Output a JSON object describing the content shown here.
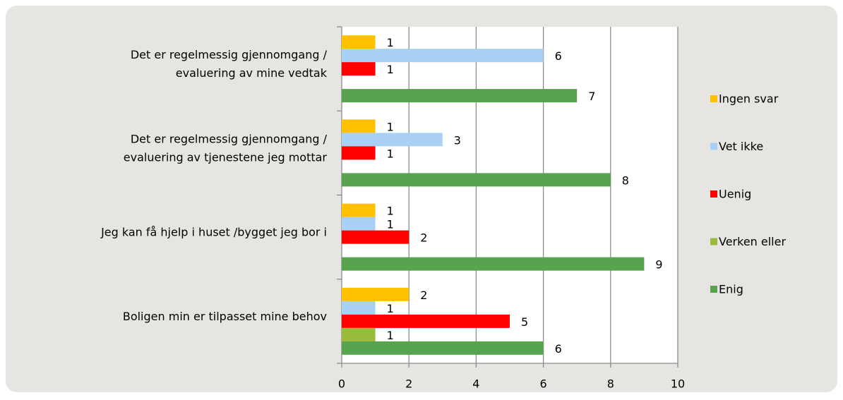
{
  "chart_data": {
    "type": "hbar",
    "categories": [
      [
        "Det er regelmessig gjennomgang /",
        "evaluering av mine vedtak"
      ],
      [
        "Det er regelmessig gjennomgang /",
        "evaluering av tjenestene jeg mottar"
      ],
      [
        "Jeg kan få hjelp i huset /bygget jeg bor i"
      ],
      [
        "Boligen min er tilpasset mine behov"
      ]
    ],
    "series": [
      {
        "name": "Ingen svar",
        "color": "#ffc000",
        "values": [
          1,
          1,
          1,
          2
        ]
      },
      {
        "name": "Vet ikke",
        "color": "#a9d0f5",
        "values": [
          6,
          3,
          1,
          1
        ]
      },
      {
        "name": "Uenig",
        "color": "#ff0000",
        "values": [
          1,
          1,
          2,
          5
        ]
      },
      {
        "name": "Verken eller",
        "color": "#9bbb3a",
        "values": [
          null,
          null,
          null,
          1
        ]
      },
      {
        "name": "Enig",
        "color": "#58a34e",
        "values": [
          7,
          8,
          9,
          6
        ]
      }
    ],
    "xlim": [
      0,
      10
    ],
    "xticks": [
      0,
      2,
      4,
      6,
      8,
      10
    ],
    "grid": true,
    "legend": "right"
  }
}
